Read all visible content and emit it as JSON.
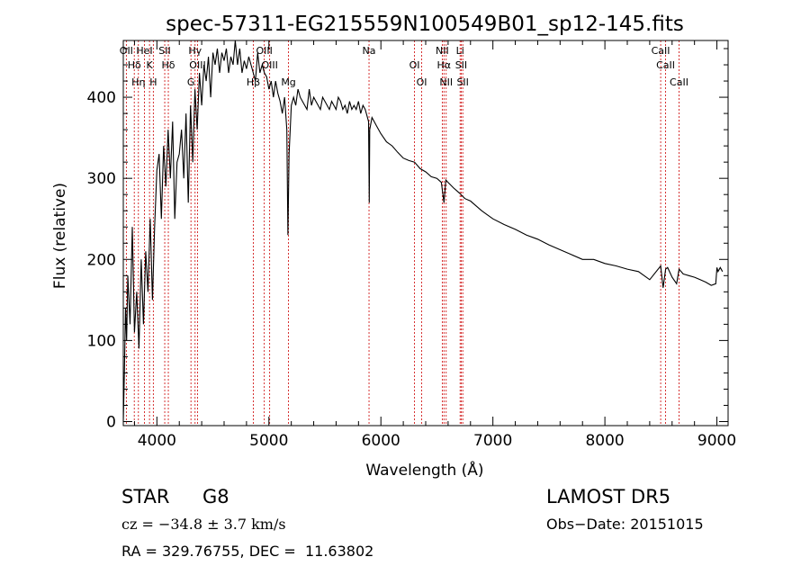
{
  "chart_data": {
    "type": "line",
    "title": "spec-57311-EG215559N100549B01_sp12-145.fits",
    "xlabel": "Wavelength (Å)",
    "ylabel": "Flux (relative)",
    "xlim": [
      3700,
      9100
    ],
    "ylim": [
      -5,
      470
    ],
    "x_ticks": [
      4000,
      5000,
      6000,
      7000,
      8000,
      9000
    ],
    "y_ticks": [
      0,
      100,
      200,
      300,
      400
    ],
    "grid": false,
    "line_color": "#000000",
    "marker_color": "#cc0000",
    "series": [
      {
        "x": [
          3700,
          3710,
          3720,
          3730,
          3740,
          3760,
          3780,
          3800,
          3820,
          3840,
          3860,
          3880,
          3900,
          3920,
          3940,
          3960,
          3980,
          4000,
          4020,
          4040,
          4060,
          4080,
          4100,
          4120,
          4140,
          4160,
          4180,
          4200,
          4220,
          4240,
          4260,
          4280,
          4300,
          4320,
          4340,
          4360,
          4380,
          4400,
          4420,
          4440,
          4460,
          4480,
          4500,
          4520,
          4540,
          4560,
          4580,
          4600,
          4620,
          4640,
          4660,
          4680,
          4700,
          4720,
          4740,
          4760,
          4780,
          4800,
          4820,
          4840,
          4860,
          4880,
          4900,
          4920,
          4940,
          4960,
          4980,
          5000,
          5020,
          5040,
          5060,
          5080,
          5100,
          5120,
          5140,
          5160,
          5170,
          5180,
          5200,
          5220,
          5240,
          5260,
          5280,
          5300,
          5320,
          5340,
          5360,
          5380,
          5400,
          5420,
          5440,
          5460,
          5480,
          5500,
          5520,
          5540,
          5560,
          5580,
          5600,
          5620,
          5640,
          5660,
          5680,
          5700,
          5720,
          5740,
          5760,
          5780,
          5800,
          5820,
          5840,
          5860,
          5880,
          5890,
          5896,
          5900,
          5920,
          5940,
          5960,
          5980,
          6000,
          6050,
          6100,
          6150,
          6200,
          6250,
          6300,
          6350,
          6400,
          6450,
          6500,
          6540,
          6563,
          6580,
          6600,
          6650,
          6700,
          6750,
          6800,
          6850,
          6900,
          6950,
          7000,
          7100,
          7200,
          7300,
          7400,
          7500,
          7600,
          7700,
          7800,
          7900,
          8000,
          8100,
          8200,
          8300,
          8400,
          8498,
          8520,
          8542,
          8560,
          8600,
          8640,
          8662,
          8700,
          8750,
          8800,
          8850,
          8900,
          8950,
          8990,
          9000,
          9010,
          9030,
          9050
        ],
        "y": [
          0,
          60,
          140,
          100,
          180,
          120,
          240,
          110,
          160,
          90,
          200,
          120,
          210,
          160,
          250,
          150,
          240,
          310,
          330,
          250,
          340,
          290,
          360,
          300,
          370,
          250,
          320,
          330,
          360,
          300,
          380,
          270,
          390,
          320,
          410,
          360,
          430,
          390,
          440,
          420,
          450,
          400,
          455,
          440,
          460,
          430,
          455,
          445,
          460,
          430,
          450,
          440,
          470,
          440,
          460,
          430,
          445,
          435,
          450,
          440,
          430,
          420,
          455,
          430,
          440,
          430,
          425,
          410,
          420,
          400,
          420,
          405,
          395,
          380,
          400,
          360,
          230,
          330,
          390,
          400,
          390,
          410,
          400,
          395,
          390,
          385,
          410,
          390,
          400,
          395,
          390,
          385,
          400,
          395,
          390,
          385,
          395,
          390,
          385,
          400,
          395,
          385,
          390,
          380,
          395,
          385,
          390,
          385,
          395,
          380,
          390,
          385,
          375,
          370,
          270,
          360,
          375,
          370,
          365,
          360,
          355,
          345,
          340,
          332,
          325,
          322,
          320,
          312,
          308,
          302,
          300,
          295,
          270,
          298,
          295,
          288,
          282,
          275,
          272,
          266,
          260,
          255,
          250,
          243,
          237,
          230,
          225,
          218,
          212,
          206,
          200,
          200,
          195,
          192,
          188,
          185,
          175,
          192,
          165,
          188,
          190,
          178,
          170,
          188,
          182,
          180,
          178,
          175,
          172,
          168,
          170,
          190,
          185,
          190,
          185
        ]
      }
    ],
    "lines": [
      {
        "x": 3727,
        "label": "OII"
      },
      {
        "x": 3798,
        "label": "Hδ"
      },
      {
        "x": 3835,
        "label": "Hη"
      },
      {
        "x": 3889,
        "label": "HeI"
      },
      {
        "x": 3934,
        "label": "K"
      },
      {
        "x": 3968,
        "label": "H"
      },
      {
        "x": 4070,
        "label": "SII"
      },
      {
        "x": 4102,
        "label": "Hδ"
      },
      {
        "x": 4304,
        "label": "G"
      },
      {
        "x": 4341,
        "label": "Hγ"
      },
      {
        "x": 4363,
        "label": "OIII"
      },
      {
        "x": 4861,
        "label": "Hβ"
      },
      {
        "x": 4959,
        "label": "OIII"
      },
      {
        "x": 5007,
        "label": "OIII"
      },
      {
        "x": 5175,
        "label": "Mg"
      },
      {
        "x": 5894,
        "label": "Na"
      },
      {
        "x": 6300,
        "label": "OI"
      },
      {
        "x": 6364,
        "label": "OI"
      },
      {
        "x": 6548,
        "label": "NII"
      },
      {
        "x": 6563,
        "label": "Hα"
      },
      {
        "x": 6583,
        "label": "NII"
      },
      {
        "x": 6707,
        "label": "Li"
      },
      {
        "x": 6717,
        "label": "SII"
      },
      {
        "x": 6731,
        "label": "SII"
      },
      {
        "x": 8498,
        "label": "CaII"
      },
      {
        "x": 8542,
        "label": "CaII"
      },
      {
        "x": 8662,
        "label": "CaII"
      }
    ]
  },
  "info": {
    "object_class": "STAR",
    "subclass": "G8",
    "survey": "LAMOST DR5",
    "redshift": "cz = −34.8 ± 3.7 km/s",
    "obs_date": "Obs−Date: 20151015",
    "coords": "RA = 329.76755, DEC =  11.63802"
  }
}
